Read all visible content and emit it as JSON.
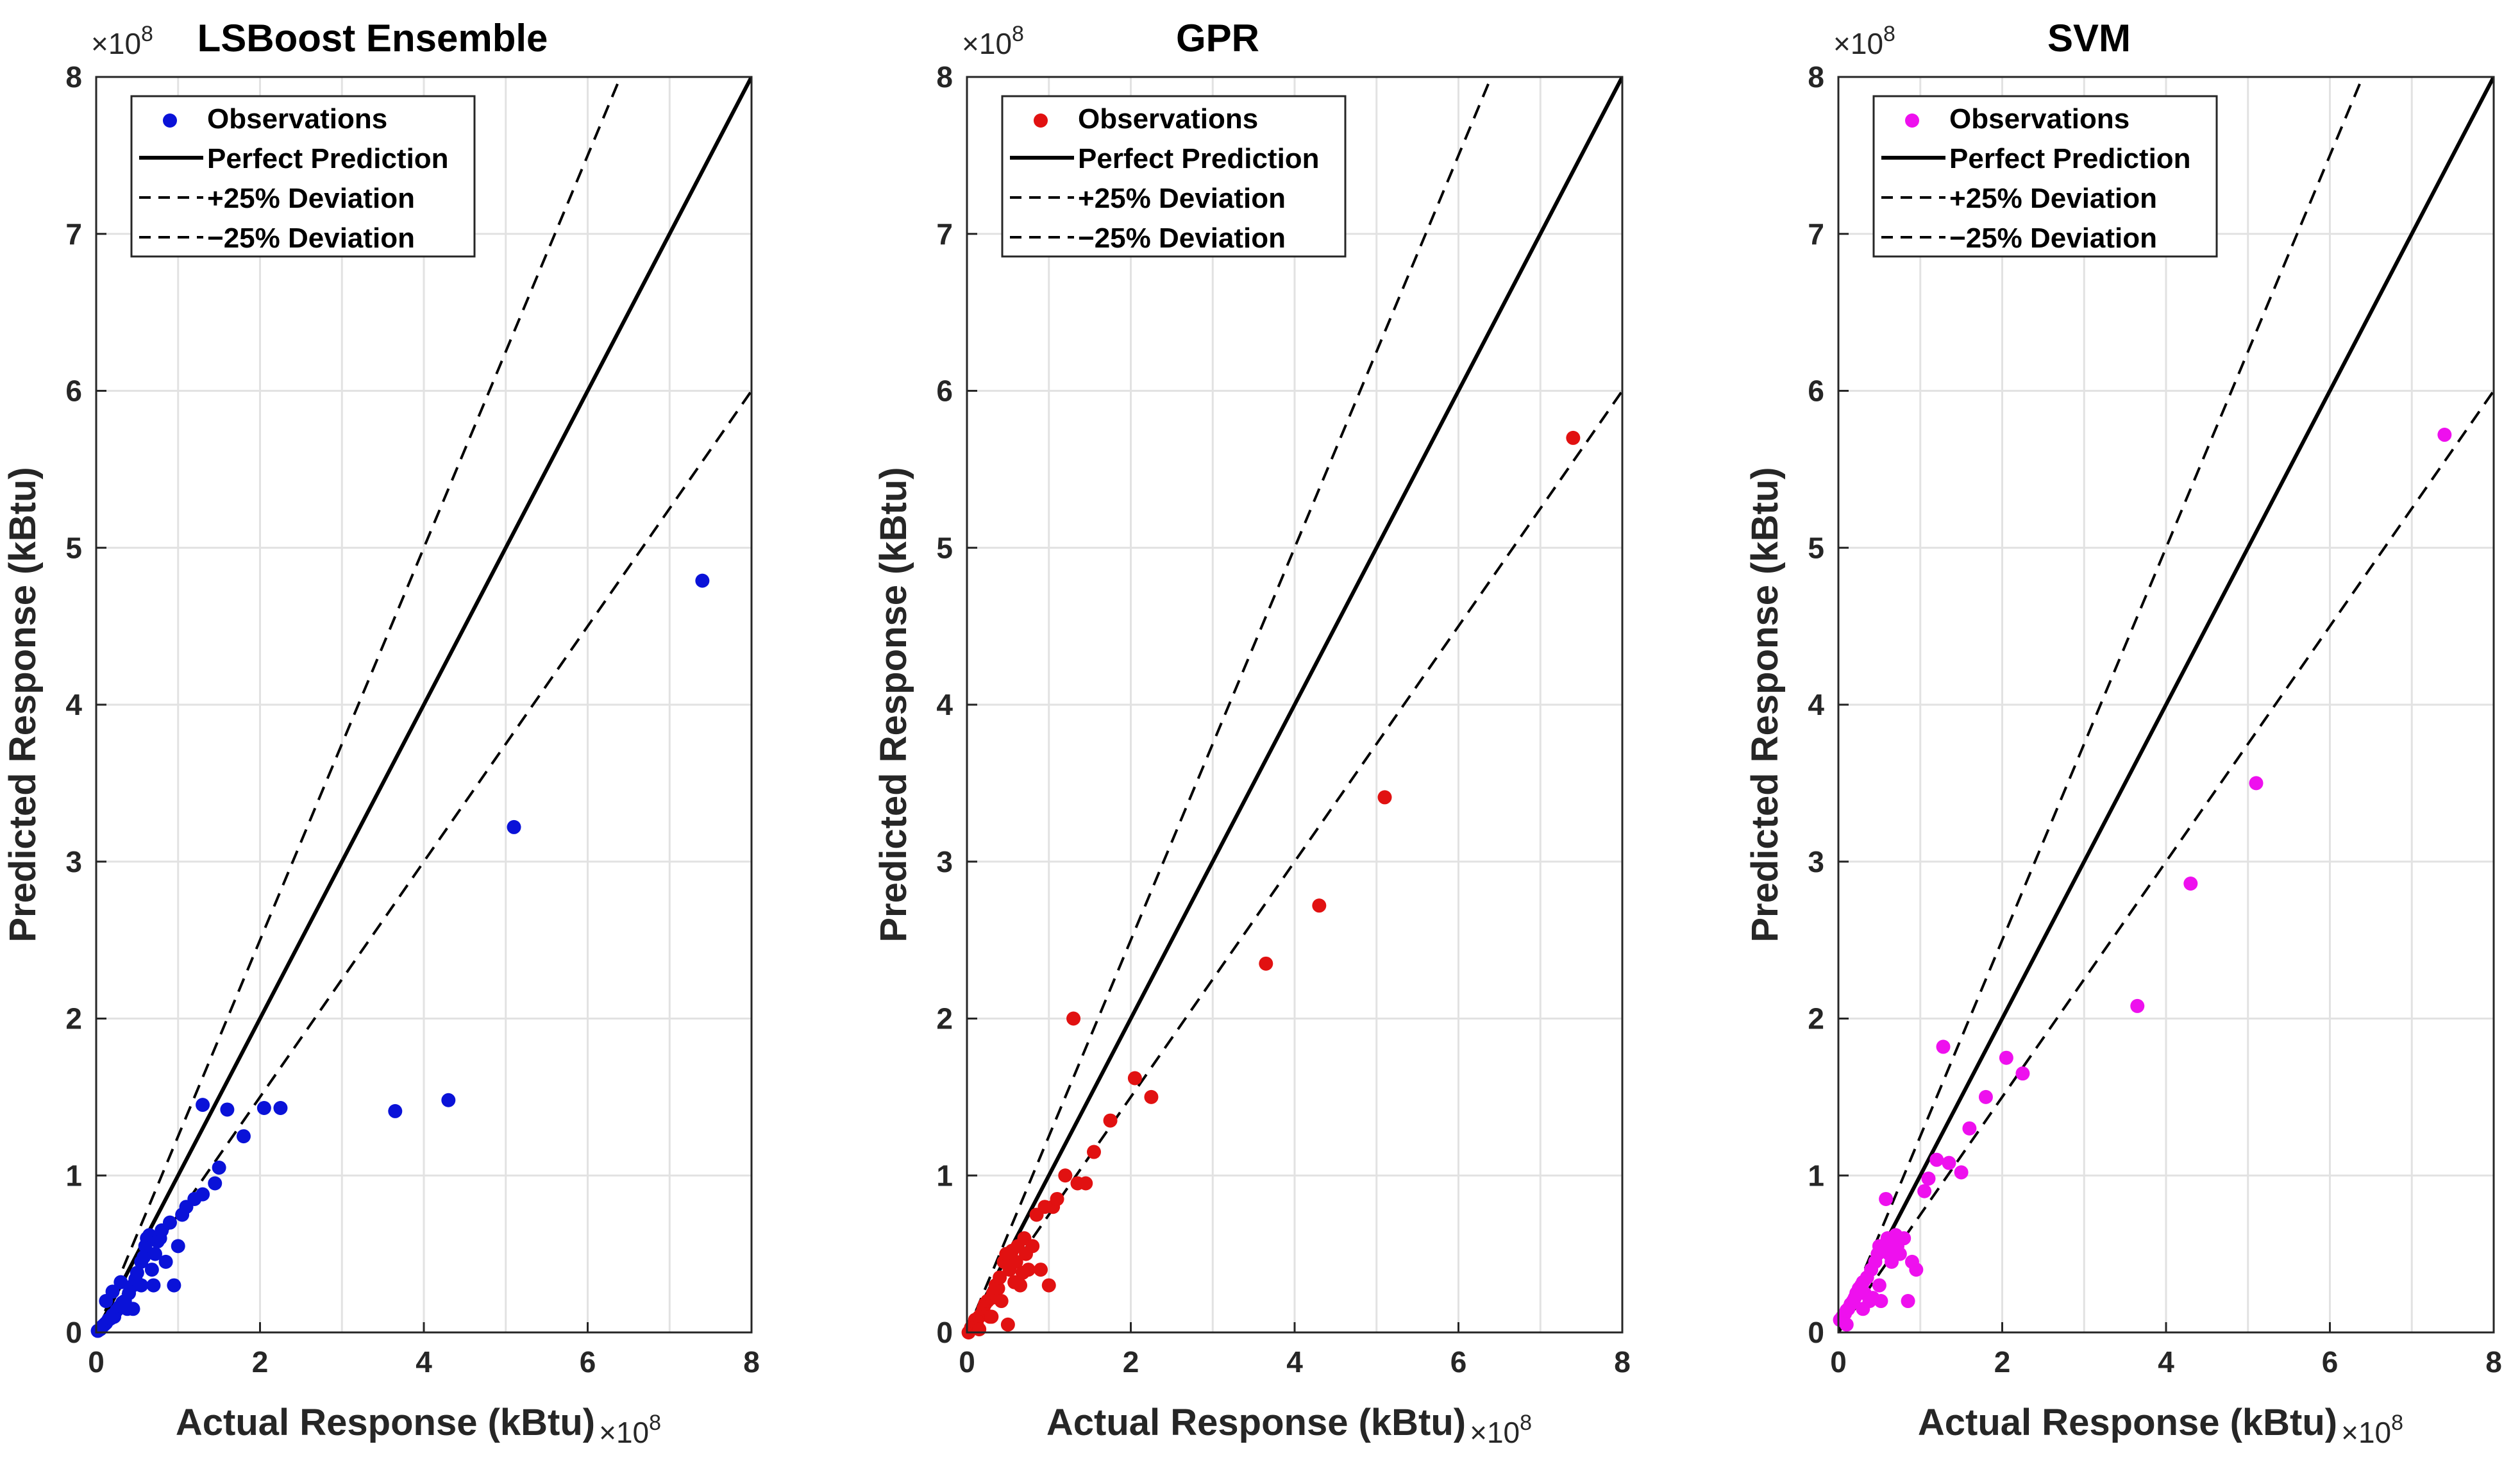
{
  "figure_title": "",
  "chart_data": [
    {
      "type": "scatter",
      "title": "LSBoost Ensemble",
      "xlabel": "Actual Response (kBtu)",
      "ylabel": "Predicted Response (kBtu)",
      "xlim": [
        0,
        8
      ],
      "ylim": [
        0,
        8
      ],
      "xticks": [
        "0",
        "2",
        "4",
        "6",
        "8"
      ],
      "yticks": [
        "0",
        "1",
        "2",
        "3",
        "4",
        "5",
        "6",
        "7",
        "8"
      ],
      "axis_exponent": "×10",
      "axis_exponent_power": "8",
      "grid": true,
      "marker_color": "#0a12d8",
      "legend": [
        "Observations",
        "Perfect Prediction",
        "+25% Deviation",
        "−25% Deviation"
      ],
      "lines": [
        {
          "name": "Perfect Prediction",
          "slope": 1.0,
          "style": "solid"
        },
        {
          "name": "+25% Deviation",
          "slope": 1.25,
          "style": "dashed"
        },
        {
          "name": "−25% Deviation",
          "slope": 0.75,
          "style": "dashed"
        }
      ],
      "points": [
        [
          0.02,
          0.01
        ],
        [
          0.05,
          0.02
        ],
        [
          0.08,
          0.04
        ],
        [
          0.1,
          0.05
        ],
        [
          0.12,
          0.06
        ],
        [
          0.15,
          0.08
        ],
        [
          0.18,
          0.09
        ],
        [
          0.2,
          0.11
        ],
        [
          0.22,
          0.1
        ],
        [
          0.25,
          0.14
        ],
        [
          0.28,
          0.16
        ],
        [
          0.3,
          0.17
        ],
        [
          0.32,
          0.19
        ],
        [
          0.35,
          0.2
        ],
        [
          0.38,
          0.15
        ],
        [
          0.4,
          0.25
        ],
        [
          0.45,
          0.3
        ],
        [
          0.48,
          0.34
        ],
        [
          0.5,
          0.38
        ],
        [
          0.55,
          0.45
        ],
        [
          0.58,
          0.48
        ],
        [
          0.6,
          0.55
        ],
        [
          0.62,
          0.6
        ],
        [
          0.65,
          0.62
        ],
        [
          0.7,
          0.3
        ],
        [
          0.72,
          0.5
        ],
        [
          0.75,
          0.58
        ],
        [
          0.78,
          0.6
        ],
        [
          0.8,
          0.65
        ],
        [
          0.85,
          0.45
        ],
        [
          0.9,
          0.7
        ],
        [
          0.95,
          0.3
        ],
        [
          1.0,
          0.55
        ],
        [
          1.05,
          0.75
        ],
        [
          1.1,
          0.8
        ],
        [
          1.2,
          0.85
        ],
        [
          1.3,
          0.88
        ],
        [
          1.45,
          0.95
        ],
        [
          1.5,
          1.05
        ],
        [
          1.3,
          1.45
        ],
        [
          1.6,
          1.42
        ],
        [
          1.8,
          1.25
        ],
        [
          2.05,
          1.43
        ],
        [
          2.25,
          1.43
        ],
        [
          3.65,
          1.41
        ],
        [
          4.3,
          1.48
        ],
        [
          5.1,
          3.22
        ],
        [
          7.4,
          4.79
        ],
        [
          0.12,
          0.2
        ],
        [
          0.2,
          0.26
        ],
        [
          0.3,
          0.32
        ],
        [
          0.45,
          0.15
        ],
        [
          0.55,
          0.3
        ],
        [
          0.68,
          0.4
        ]
      ]
    },
    {
      "type": "scatter",
      "title": "GPR",
      "xlabel": "Actual Response (kBtu)",
      "ylabel": "Predicted Response (kBtu)",
      "xlim": [
        0,
        8
      ],
      "ylim": [
        0,
        8
      ],
      "xticks": [
        "0",
        "2",
        "4",
        "6",
        "8"
      ],
      "yticks": [
        "0",
        "1",
        "2",
        "3",
        "4",
        "5",
        "6",
        "7",
        "8"
      ],
      "axis_exponent": "×10",
      "axis_exponent_power": "8",
      "grid": true,
      "marker_color": "#e11111",
      "legend": [
        "Observations",
        "Perfect Prediction",
        "+25% Deviation",
        "−25% Deviation"
      ],
      "lines": [
        {
          "name": "Perfect Prediction",
          "slope": 1.0,
          "style": "solid"
        },
        {
          "name": "+25% Deviation",
          "slope": 1.25,
          "style": "dashed"
        },
        {
          "name": "−25% Deviation",
          "slope": 0.75,
          "style": "dashed"
        }
      ],
      "points": [
        [
          0.02,
          0.0
        ],
        [
          0.05,
          0.03
        ],
        [
          0.08,
          0.05
        ],
        [
          0.1,
          0.08
        ],
        [
          0.12,
          0.05
        ],
        [
          0.15,
          0.1
        ],
        [
          0.18,
          0.12
        ],
        [
          0.2,
          0.15
        ],
        [
          0.22,
          0.18
        ],
        [
          0.25,
          0.2
        ],
        [
          0.28,
          0.1
        ],
        [
          0.3,
          0.22
        ],
        [
          0.32,
          0.25
        ],
        [
          0.35,
          0.3
        ],
        [
          0.38,
          0.28
        ],
        [
          0.4,
          0.35
        ],
        [
          0.42,
          0.2
        ],
        [
          0.45,
          0.45
        ],
        [
          0.48,
          0.5
        ],
        [
          0.5,
          0.05
        ],
        [
          0.52,
          0.4
        ],
        [
          0.55,
          0.52
        ],
        [
          0.6,
          0.45
        ],
        [
          0.62,
          0.55
        ],
        [
          0.65,
          0.3
        ],
        [
          0.7,
          0.6
        ],
        [
          0.72,
          0.5
        ],
        [
          0.75,
          0.4
        ],
        [
          0.8,
          0.55
        ],
        [
          0.85,
          0.75
        ],
        [
          0.9,
          0.4
        ],
        [
          0.95,
          0.8
        ],
        [
          1.0,
          0.3
        ],
        [
          1.05,
          0.8
        ],
        [
          1.1,
          0.85
        ],
        [
          1.2,
          1.0
        ],
        [
          1.3,
          2.0
        ],
        [
          1.35,
          0.95
        ],
        [
          1.45,
          0.95
        ],
        [
          1.55,
          1.15
        ],
        [
          1.75,
          1.35
        ],
        [
          2.05,
          1.62
        ],
        [
          2.25,
          1.5
        ],
        [
          3.65,
          2.35
        ],
        [
          4.3,
          2.72
        ],
        [
          5.1,
          3.41
        ],
        [
          7.4,
          5.7
        ],
        [
          0.15,
          0.02
        ],
        [
          0.3,
          0.1
        ],
        [
          0.58,
          0.32
        ],
        [
          0.68,
          0.38
        ]
      ]
    },
    {
      "type": "scatter",
      "title": "SVM",
      "xlabel": "Actual Response (kBtu)",
      "ylabel": "Predicted Response (kBtu)",
      "xlim": [
        0,
        8
      ],
      "ylim": [
        0,
        8
      ],
      "xticks": [
        "0",
        "2",
        "4",
        "6",
        "8"
      ],
      "yticks": [
        "0",
        "1",
        "2",
        "3",
        "4",
        "5",
        "6",
        "7",
        "8"
      ],
      "axis_exponent": "×10",
      "axis_exponent_power": "8",
      "grid": true,
      "marker_color": "#ee10ee",
      "legend": [
        "Observations",
        "Perfect Prediction",
        "+25% Deviation",
        "−25% Deviation"
      ],
      "lines": [
        {
          "name": "Perfect Prediction",
          "slope": 1.0,
          "style": "solid"
        },
        {
          "name": "+25% Deviation",
          "slope": 1.25,
          "style": "dashed"
        },
        {
          "name": "−25% Deviation",
          "slope": 0.75,
          "style": "dashed"
        }
      ],
      "points": [
        [
          0.02,
          0.08
        ],
        [
          0.05,
          0.1
        ],
        [
          0.08,
          0.12
        ],
        [
          0.1,
          0.14
        ],
        [
          0.12,
          0.15
        ],
        [
          0.15,
          0.18
        ],
        [
          0.18,
          0.2
        ],
        [
          0.2,
          0.22
        ],
        [
          0.22,
          0.25
        ],
        [
          0.25,
          0.28
        ],
        [
          0.28,
          0.3
        ],
        [
          0.3,
          0.32
        ],
        [
          0.32,
          0.25
        ],
        [
          0.35,
          0.35
        ],
        [
          0.38,
          0.2
        ],
        [
          0.4,
          0.4
        ],
        [
          0.42,
          0.22
        ],
        [
          0.45,
          0.45
        ],
        [
          0.48,
          0.5
        ],
        [
          0.5,
          0.55
        ],
        [
          0.52,
          0.2
        ],
        [
          0.55,
          0.52
        ],
        [
          0.58,
          0.85
        ],
        [
          0.6,
          0.6
        ],
        [
          0.62,
          0.5
        ],
        [
          0.65,
          0.45
        ],
        [
          0.68,
          0.55
        ],
        [
          0.7,
          0.62
        ],
        [
          0.72,
          0.55
        ],
        [
          0.75,
          0.5
        ],
        [
          0.8,
          0.6
        ],
        [
          0.85,
          0.2
        ],
        [
          0.9,
          0.45
        ],
        [
          0.95,
          0.4
        ],
        [
          1.05,
          0.9
        ],
        [
          1.1,
          0.98
        ],
        [
          1.2,
          1.1
        ],
        [
          1.28,
          1.82
        ],
        [
          1.35,
          1.08
        ],
        [
          1.5,
          1.02
        ],
        [
          1.6,
          1.3
        ],
        [
          1.8,
          1.5
        ],
        [
          2.05,
          1.75
        ],
        [
          2.25,
          1.65
        ],
        [
          3.65,
          2.08
        ],
        [
          4.3,
          2.86
        ],
        [
          5.1,
          3.5
        ],
        [
          7.4,
          5.72
        ],
        [
          0.1,
          0.05
        ],
        [
          0.3,
          0.15
        ],
        [
          0.5,
          0.3
        ]
      ]
    }
  ]
}
